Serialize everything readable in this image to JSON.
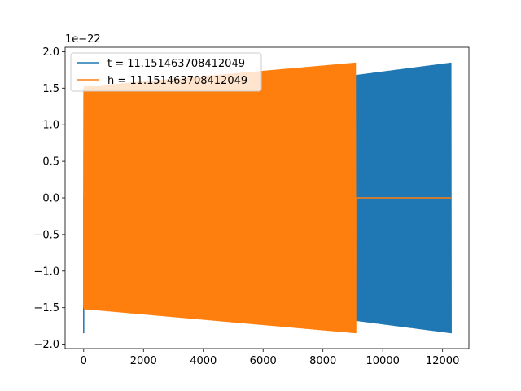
{
  "chart_data": {
    "type": "line",
    "title": "",
    "xlabel": "",
    "ylabel": "",
    "y_offset_label": "1e−22",
    "xlim": [
      -620,
      12880
    ],
    "ylim": [
      -2.06,
      2.06
    ],
    "x_ticks": [
      0,
      2000,
      4000,
      6000,
      8000,
      10000,
      12000
    ],
    "x_tick_labels": [
      "0",
      "2000",
      "4000",
      "6000",
      "8000",
      "10000",
      "12000"
    ],
    "y_ticks": [
      -2.0,
      -1.5,
      -1.0,
      -0.5,
      0.0,
      0.5,
      1.0,
      1.5,
      2.0
    ],
    "y_tick_labels": [
      "−2.0",
      "−1.5",
      "−1.0",
      "−0.5",
      "0.0",
      "0.5",
      "1.0",
      "1.5",
      "2.0"
    ],
    "grid": false,
    "legend_position": "top-left",
    "series": [
      {
        "name": "t = 11.151463708412049",
        "color": "#1f77b4",
        "x_range": [
          0,
          12288
        ],
        "envelope_x": [
          0,
          9100,
          12288
        ],
        "envelope_upper": [
          1.52,
          1.68,
          1.85
        ],
        "envelope_lower": [
          -1.52,
          -1.68,
          -1.85
        ],
        "initial_spike": -1.85
      },
      {
        "name": "h = 11.151463708412049",
        "color": "#ff7f0e",
        "x_range": [
          0,
          12288
        ],
        "envelope_x": [
          0,
          9100
        ],
        "envelope_upper": [
          1.52,
          1.85
        ],
        "envelope_lower": [
          -1.52,
          -1.85
        ],
        "initial_spike": -1.5,
        "zero_after": 9100
      }
    ]
  }
}
